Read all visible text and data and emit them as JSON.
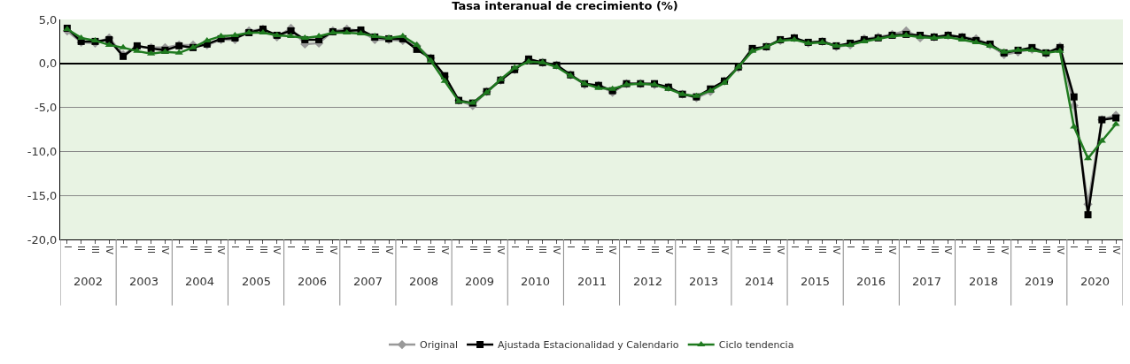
{
  "chart_data": {
    "type": "line",
    "title": "Tasa interanual de crecimiento (%)",
    "categories": [
      "I",
      "II",
      "III",
      "IV",
      "I",
      "II",
      "III",
      "IV",
      "I",
      "II",
      "III",
      "IV",
      "I",
      "II",
      "III",
      "IV",
      "I",
      "II",
      "III",
      "IV",
      "I",
      "II",
      "III",
      "IV",
      "I",
      "II",
      "III",
      "IV",
      "I",
      "II",
      "III",
      "IV",
      "I",
      "II",
      "III",
      "IV",
      "I",
      "II",
      "III",
      "IV",
      "I",
      "II",
      "III",
      "IV",
      "I",
      "II",
      "III",
      "IV",
      "I",
      "II",
      "III",
      "IV",
      "I",
      "II",
      "III",
      "IV",
      "I",
      "II",
      "III",
      "IV",
      "I",
      "II",
      "III",
      "IV",
      "I",
      "II",
      "III",
      "IV",
      "I",
      "II",
      "III",
      "IV",
      "I",
      "II",
      "III",
      "IV"
    ],
    "annotations": [
      "2002",
      "2003",
      "2004",
      "2005",
      "2006",
      "2007",
      "2008",
      "2009",
      "2010",
      "2011",
      "2012",
      "2013",
      "2014",
      "2015",
      "2016",
      "2017",
      "2018",
      "2019",
      "2020"
    ],
    "series": [
      {
        "name": "Original",
        "color": "#999999",
        "marker": "diamond",
        "values": [
          3.7,
          2.4,
          2.3,
          2.9,
          1.0,
          1.9,
          1.8,
          1.8,
          2.1,
          2.1,
          2.1,
          2.7,
          2.7,
          3.7,
          3.9,
          3.0,
          4.0,
          2.2,
          2.3,
          3.7,
          3.9,
          3.7,
          2.7,
          2.7,
          2.6,
          2.0,
          0.6,
          -1.5,
          -4.2,
          -4.8,
          -3.2,
          -1.9,
          -0.7,
          0.4,
          0.1,
          -0.2,
          -1.3,
          -2.4,
          -2.5,
          -3.3,
          -2.3,
          -2.3,
          -2.4,
          -2.7,
          -3.5,
          -3.9,
          -3.2,
          -2.0,
          -0.5,
          1.6,
          1.9,
          2.6,
          2.9,
          2.3,
          2.5,
          1.9,
          2.1,
          2.8,
          3.0,
          3.3,
          3.7,
          2.9,
          3.0,
          3.2,
          3.0,
          2.8,
          2.1,
          1.0,
          1.3,
          1.6,
          1.1,
          1.9,
          -4.8,
          -16.0,
          -6.4,
          -5.9
        ]
      },
      {
        "name": "Ajustada Estacionalidad y Calendario",
        "color": "#000000",
        "marker": "square",
        "values": [
          4.0,
          2.5,
          2.5,
          2.7,
          0.8,
          2.0,
          1.7,
          1.5,
          2.0,
          1.8,
          2.2,
          2.8,
          2.9,
          3.5,
          3.9,
          3.2,
          3.7,
          2.7,
          2.7,
          3.6,
          3.7,
          3.8,
          3.0,
          2.8,
          2.8,
          1.6,
          0.6,
          -1.4,
          -4.2,
          -4.5,
          -3.2,
          -1.9,
          -0.7,
          0.5,
          0.1,
          -0.2,
          -1.3,
          -2.3,
          -2.5,
          -3.1,
          -2.3,
          -2.3,
          -2.3,
          -2.7,
          -3.5,
          -3.8,
          -2.9,
          -2.0,
          -0.4,
          1.7,
          1.9,
          2.7,
          2.9,
          2.4,
          2.5,
          2.0,
          2.3,
          2.7,
          2.9,
          3.2,
          3.3,
          3.2,
          3.0,
          3.2,
          3.0,
          2.6,
          2.2,
          1.2,
          1.5,
          1.8,
          1.2,
          1.8,
          -3.8,
          -17.2,
          -6.4,
          -6.2
        ]
      },
      {
        "name": "Ciclo tendencia",
        "color": "#1f7a1f",
        "marker": "triangle",
        "values": [
          3.9,
          2.9,
          2.6,
          2.1,
          1.8,
          1.4,
          1.1,
          1.3,
          1.2,
          1.8,
          2.6,
          3.1,
          3.2,
          3.5,
          3.5,
          3.2,
          3.1,
          2.9,
          3.1,
          3.5,
          3.5,
          3.4,
          3.1,
          2.9,
          3.1,
          2.1,
          0.3,
          -2.0,
          -4.3,
          -4.5,
          -3.3,
          -1.8,
          -0.5,
          0.2,
          0.1,
          -0.4,
          -1.4,
          -2.3,
          -2.8,
          -2.9,
          -2.4,
          -2.3,
          -2.4,
          -2.9,
          -3.5,
          -3.7,
          -3.1,
          -2.2,
          -0.4,
          1.4,
          1.9,
          2.6,
          2.7,
          2.3,
          2.4,
          2.0,
          2.1,
          2.5,
          2.8,
          3.1,
          3.2,
          3.0,
          2.9,
          3.0,
          2.7,
          2.4,
          2.0,
          1.3,
          1.5,
          1.5,
          1.2,
          1.4,
          -7.2,
          -10.8,
          -8.8,
          -6.9
        ]
      }
    ],
    "ylim": [
      -20,
      5
    ],
    "yticks": [
      {
        "value": 5,
        "label": "5,0"
      },
      {
        "value": 0,
        "label": "0,0"
      },
      {
        "value": -5,
        "label": "-5,0"
      },
      {
        "value": -10,
        "label": "-10,0"
      },
      {
        "value": -15,
        "label": "-15,0"
      },
      {
        "value": -20,
        "label": "-20,0"
      }
    ],
    "grid": "y",
    "legend": "bottom",
    "line_style": "solid"
  }
}
